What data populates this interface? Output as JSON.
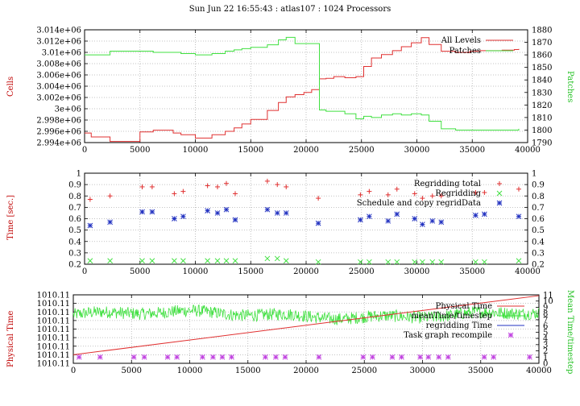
{
  "title": "Sun Jun 22 16:55:43 : atlas107 : 1024 Processors",
  "chart_data": [
    {
      "type": "line",
      "ylabel": "Cells",
      "y2label": "Patches",
      "xlim": [
        0,
        40000
      ],
      "ylim": [
        2994000,
        3014000
      ],
      "y2lim": [
        1790,
        1880
      ],
      "xticks": [
        "0",
        "5000",
        "10000",
        "15000",
        "20000",
        "25000",
        "30000",
        "35000",
        "40000"
      ],
      "yticks": [
        "2.994e+06",
        "2.996e+06",
        "2.998e+06",
        "3e+06",
        "3.002e+06",
        "3.004e+06",
        "3.006e+06",
        "3.008e+06",
        "3.01e+06",
        "3.012e+06",
        "3.014e+06"
      ],
      "y2ticks": [
        "1790",
        "1800",
        "1810",
        "1820",
        "1830",
        "1840",
        "1850",
        "1860",
        "1870",
        "1880"
      ],
      "grid": true,
      "legend": "top-right",
      "series": [
        {
          "name": "All Levels",
          "color": "#e03030",
          "axis": "left",
          "x": [
            0,
            600,
            2300,
            5000,
            6200,
            8000,
            8700,
            10000,
            11500,
            12700,
            13500,
            14200,
            15000,
            16500,
            17500,
            18200,
            19000,
            19800,
            20500,
            21200,
            21800,
            22500,
            23500,
            24500,
            25200,
            25900,
            26800,
            27800,
            28600,
            29500,
            30400,
            31100,
            32200,
            33500,
            34800,
            35700,
            36700,
            37700,
            38800,
            39200
          ],
          "y": [
            2995700,
            2995000,
            2994200,
            2995900,
            2996200,
            2995700,
            2995400,
            2994800,
            2995400,
            2996000,
            2996600,
            2997300,
            2998100,
            2999700,
            3001100,
            3002100,
            3002500,
            3002900,
            3003400,
            3005300,
            3005400,
            3005700,
            3005500,
            3005700,
            3007500,
            3009000,
            3009600,
            3010300,
            3011000,
            3011700,
            3012600,
            3011400,
            3010200,
            3010000,
            3010200,
            3010300,
            3010300,
            3010400,
            3010500,
            3010600
          ]
        },
        {
          "name": "Patches",
          "color": "#40e040",
          "axis": "right",
          "x": [
            0,
            600,
            2300,
            5000,
            6200,
            8000,
            8700,
            10000,
            11500,
            12700,
            13500,
            14200,
            15000,
            16500,
            17500,
            18200,
            19000,
            19800,
            20500,
            21200,
            21800,
            22500,
            23500,
            24500,
            25200,
            25900,
            26800,
            27800,
            28600,
            29500,
            30400,
            31100,
            32200,
            33500,
            34800,
            35700,
            36700,
            37700,
            38800,
            39200
          ],
          "y": [
            1860,
            1860,
            1863,
            1863,
            1862,
            1862,
            1861,
            1860,
            1861,
            1863,
            1864,
            1865,
            1866,
            1868,
            1872,
            1874,
            1869,
            1869,
            1869,
            1816,
            1815,
            1815,
            1813,
            1809,
            1811,
            1810,
            1812,
            1813,
            1812,
            1813,
            1812,
            1807,
            1801,
            1800,
            1800,
            1800,
            1800,
            1800,
            1800,
            1801
          ]
        }
      ]
    },
    {
      "type": "scatter",
      "ylabel": "Time [sec.]",
      "xlim": [
        0,
        40000
      ],
      "ylim": [
        0.2,
        1
      ],
      "y2lim": [
        0.2,
        1
      ],
      "xticks": [
        "0",
        "5000",
        "10000",
        "15000",
        "20000",
        "25000",
        "30000",
        "35000",
        "40000"
      ],
      "yticks": [
        "0.2",
        "0.3",
        "0.4",
        "0.5",
        "0.6",
        "0.7",
        "0.8",
        "0.9",
        "1"
      ],
      "y2ticks": [
        "0.2",
        "0.3",
        "0.4",
        "0.5",
        "0.6",
        "0.7",
        "0.8",
        "0.9",
        "1"
      ],
      "grid": true,
      "legend": "top-right",
      "x": [
        500,
        2300,
        5200,
        6100,
        8100,
        8900,
        11100,
        12000,
        12800,
        13600,
        16500,
        17400,
        18200,
        21100,
        24900,
        25700,
        27400,
        28200,
        29800,
        30500,
        31400,
        32200,
        35300,
        36100,
        39200
      ],
      "series": [
        {
          "name": "Regridding total",
          "color": "#e03030",
          "marker": "plus",
          "y": [
            0.77,
            0.8,
            0.88,
            0.88,
            0.82,
            0.84,
            0.89,
            0.88,
            0.91,
            0.82,
            0.93,
            0.9,
            0.88,
            0.78,
            0.81,
            0.84,
            0.81,
            0.86,
            0.82,
            0.78,
            0.8,
            0.8,
            0.83,
            0.83,
            0.86
          ]
        },
        {
          "name": "Regridding",
          "color": "#40e040",
          "marker": "cross",
          "y": [
            0.23,
            0.23,
            0.23,
            0.23,
            0.23,
            0.23,
            0.23,
            0.23,
            0.23,
            0.23,
            0.25,
            0.25,
            0.23,
            0.22,
            0.22,
            0.22,
            0.22,
            0.22,
            0.22,
            0.22,
            0.22,
            0.22,
            0.22,
            0.22,
            0.23
          ]
        },
        {
          "name": "Schedule and copy regridData",
          "color": "#2030c0",
          "marker": "asterisk",
          "y": [
            0.54,
            0.57,
            0.66,
            0.66,
            0.6,
            0.62,
            0.67,
            0.65,
            0.68,
            0.59,
            0.68,
            0.65,
            0.65,
            0.56,
            0.59,
            0.62,
            0.58,
            0.64,
            0.6,
            0.55,
            0.58,
            0.57,
            0.63,
            0.64,
            0.62
          ]
        }
      ]
    },
    {
      "type": "line",
      "ylabel": "Physical Time",
      "y2label": "Mean Time/timestep",
      "xlim": [
        0,
        40000
      ],
      "ylim": [
        0,
        8
      ],
      "y2lim": [
        0,
        11
      ],
      "xticks": [
        "0",
        "5000",
        "10000",
        "15000",
        "20000",
        "25000",
        "30000",
        "35000",
        "40000"
      ],
      "yticks": [
        "1010.11",
        "1010.11",
        "1010.11",
        "1010.11",
        "1010.11",
        "1010.11",
        "1010.11",
        "1010.11",
        "1010.11"
      ],
      "y2ticks": [
        "0",
        "1",
        "2",
        "3",
        "4",
        "5",
        "6",
        "7",
        "8",
        "9",
        "10",
        "11"
      ],
      "grid": true,
      "legend": "top-right",
      "series": [
        {
          "name": "Physical Time",
          "color": "#e03030",
          "axis": "left",
          "x": [
            0,
            40000
          ],
          "y": [
            1.0,
            7.9
          ]
        },
        {
          "name": "meanTime/timestep",
          "color": "#40e040",
          "axis": "right",
          "mean": 7.8,
          "noise": 1.0,
          "points": 800
        },
        {
          "name": "regridding Time",
          "color": "#2030c0",
          "axis": "right"
        },
        {
          "name": "Task graph recompile",
          "color": "#c040e0",
          "axis": "right",
          "marker": "asterisk",
          "x": [
            500,
            2300,
            5200,
            6100,
            8100,
            8900,
            11100,
            12000,
            12800,
            13600,
            16500,
            17400,
            18200,
            21100,
            24900,
            25700,
            27400,
            28200,
            29800,
            30500,
            31400,
            32200,
            35300,
            36100,
            39200
          ],
          "y": [
            1,
            1,
            1,
            1,
            1,
            1,
            1,
            1,
            1,
            1,
            1,
            1,
            1,
            1,
            1,
            1,
            1,
            1,
            1,
            1,
            1,
            1,
            1,
            1,
            1
          ]
        }
      ]
    }
  ]
}
